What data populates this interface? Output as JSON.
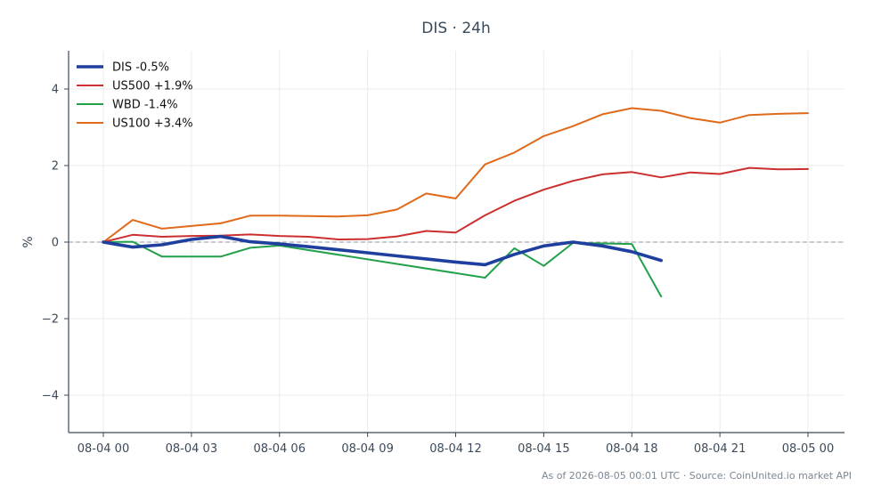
{
  "chart_data": {
    "type": "line",
    "title": "DIS · 24h",
    "ylabel": "%",
    "xlabel": "",
    "xlim": [
      0,
      24
    ],
    "ylim": [
      -5,
      5
    ],
    "yticks": [
      -4,
      -2,
      0,
      2,
      4
    ],
    "ytick_labels": [
      "−4",
      "−2",
      "0",
      "2",
      "4"
    ],
    "xticks": [
      0,
      3,
      6,
      9,
      12,
      15,
      18,
      21,
      24
    ],
    "xtick_labels": [
      "08-04 00",
      "08-04 03",
      "08-04 06",
      "08-04 09",
      "08-04 12",
      "08-04 15",
      "08-04 18",
      "08-04 21",
      "08-05 00"
    ],
    "grid": true,
    "baseline": 0,
    "legend_position": "top-left",
    "series": [
      {
        "name": "DIS -0.5%",
        "color": "#1f3f9e",
        "x": [
          0,
          1,
          2,
          3,
          4,
          5,
          6,
          7,
          8,
          9,
          10,
          11,
          12,
          13,
          14,
          15,
          16,
          17,
          18,
          19
        ],
        "values": [
          0.0,
          -0.13,
          -0.07,
          0.07,
          0.15,
          0.01,
          -0.05,
          -0.12,
          -0.2,
          -0.28,
          -0.36,
          -0.44,
          -0.52,
          -0.59,
          -0.32,
          -0.1,
          0.0,
          -0.1,
          -0.25,
          -0.48
        ]
      },
      {
        "name": "US500 +1.9%",
        "color": "#cc2f2f",
        "x": [
          0,
          1,
          2,
          3,
          4,
          5,
          6,
          7,
          8,
          9,
          10,
          11,
          12,
          13,
          14,
          15,
          16,
          17,
          18,
          19,
          20,
          21,
          22,
          23,
          24
        ],
        "values": [
          0.0,
          0.19,
          0.14,
          0.16,
          0.17,
          0.2,
          0.16,
          0.14,
          0.07,
          0.08,
          0.15,
          0.29,
          0.25,
          0.7,
          1.08,
          1.37,
          1.6,
          1.77,
          1.83,
          1.69,
          1.82,
          1.78,
          1.94,
          1.9,
          1.91
        ]
      },
      {
        "name": "WBD -1.4%",
        "color": "#23a04a",
        "x": [
          0,
          1,
          2,
          3,
          4,
          5,
          6,
          13,
          14,
          15,
          16,
          18,
          19
        ],
        "values": [
          0.0,
          0.01,
          -0.38,
          -0.38,
          -0.38,
          -0.15,
          -0.09,
          -0.93,
          -0.16,
          -0.62,
          -0.02,
          -0.05,
          -1.42
        ]
      },
      {
        "name": "US100 +3.4%",
        "color": "#e06a1b",
        "x": [
          0,
          1,
          2,
          3,
          4,
          5,
          6,
          7,
          8,
          9,
          10,
          11,
          12,
          13,
          14,
          15,
          16,
          17,
          18,
          19,
          20,
          21,
          22,
          23,
          24
        ],
        "values": [
          0.0,
          0.58,
          0.35,
          0.42,
          0.49,
          0.69,
          0.69,
          0.68,
          0.67,
          0.7,
          0.85,
          1.27,
          1.14,
          2.03,
          2.34,
          2.77,
          3.03,
          3.34,
          3.5,
          3.43,
          3.24,
          3.12,
          3.32,
          3.35,
          3.37
        ]
      }
    ]
  },
  "footer": "As of 2026-08-05 00:01 UTC · Source: CoinUnited.io market API",
  "colors": {
    "axis": "#3b4a5a",
    "grid": "#ebebeb",
    "baseline": "#8c9aaa"
  }
}
